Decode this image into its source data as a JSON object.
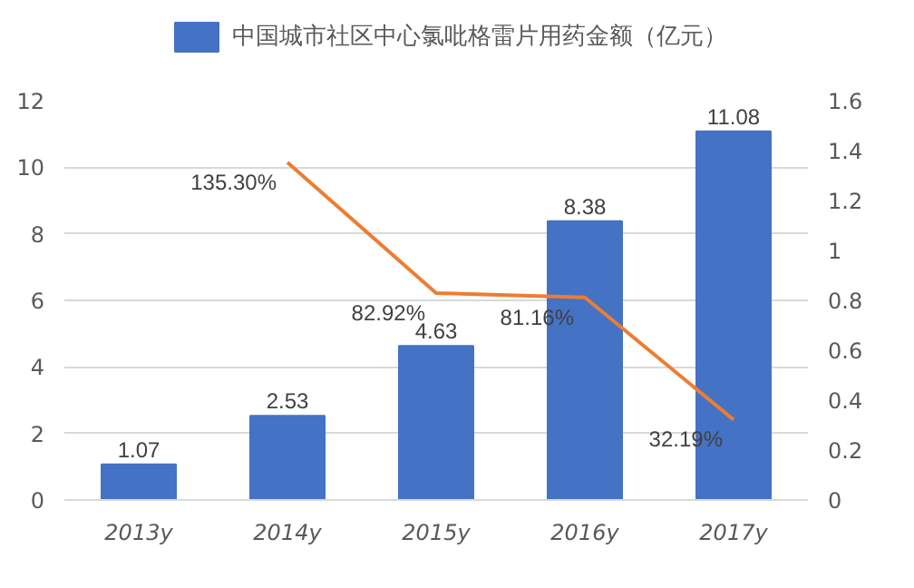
{
  "chart_data": {
    "type": "bar",
    "categories": [
      "2013y",
      "2014y",
      "2015y",
      "2016y",
      "2017y"
    ],
    "series": [
      {
        "name": "中国城市社区中心氯吡格雷片用药金额（亿元）",
        "color": "#4472c4",
        "values": [
          1.07,
          2.53,
          4.63,
          8.38,
          11.08
        ],
        "data_labels": true
      },
      {
        "type": "line",
        "axis": "y2",
        "color": "#ed7d31",
        "values": [
          null,
          1.353,
          0.8292,
          0.8116,
          0.3219
        ],
        "value_labels": [
          null,
          "135.30%",
          "82.92%",
          "81.16%",
          "32.19%"
        ],
        "marker": "none"
      }
    ],
    "ylim": [
      0,
      12
    ],
    "yticks": [
      0,
      2,
      4,
      6,
      8,
      10,
      12
    ],
    "y2lim": [
      0,
      1.6
    ],
    "y2ticks": [
      0,
      0.2,
      0.4,
      0.6,
      0.8,
      1,
      1.2,
      1.4,
      1.6
    ],
    "grid": "y",
    "legend": "top"
  }
}
